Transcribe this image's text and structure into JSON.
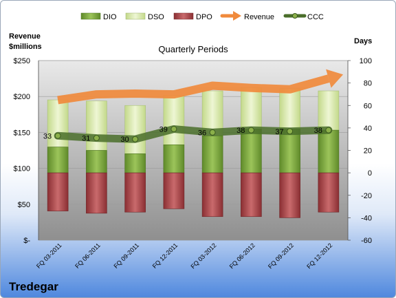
{
  "company": "Tredegar",
  "chart_data": {
    "type": "bar",
    "title": "Quarterly Periods",
    "left_axis": {
      "title_line1": "Revenue",
      "title_line2": "$millions",
      "ylim": [
        0,
        250
      ],
      "ticks": [
        0,
        50,
        100,
        150,
        200,
        250
      ],
      "tick_labels": [
        "$-",
        "$50",
        "$100",
        "$150",
        "$200",
        "$250"
      ]
    },
    "right_axis": {
      "title": "Days",
      "ylim": [
        -60,
        100
      ],
      "ticks": [
        -60,
        -40,
        -20,
        0,
        20,
        40,
        60,
        80,
        100
      ],
      "tick_labels": [
        "-60",
        "-40",
        "-20",
        "0",
        "20",
        "40",
        "60",
        "80",
        "100"
      ]
    },
    "categories": [
      "FQ 03-2011",
      "FQ 06-2011",
      "FQ 09-2011",
      "FQ 12-2011",
      "FQ 03-2012",
      "FQ 06-2012",
      "FQ 09-2012",
      "FQ 12-2012"
    ],
    "series": [
      {
        "name": "DIO",
        "color": "#7aa33a",
        "values": [
          23,
          20,
          17,
          25,
          33,
          39,
          39,
          38
        ]
      },
      {
        "name": "DSO",
        "color": "#d6e6a8",
        "values": [
          42,
          44,
          43,
          44,
          40,
          37,
          36,
          35
        ]
      },
      {
        "name": "DPO",
        "color": "#b0474a",
        "values": [
          -34,
          -36,
          -35,
          -32,
          -39,
          -39,
          -40,
          -35
        ]
      },
      {
        "name": "Revenue",
        "color": "#f08a3c",
        "values": [
          195,
          203,
          204,
          203,
          215,
          212,
          210,
          225
        ]
      },
      {
        "name": "CCC",
        "color": "#4a6e2a",
        "values": [
          33,
          31,
          30,
          39,
          36,
          38,
          37,
          38
        ],
        "labels": [
          "33",
          "31",
          "30",
          "39",
          "36",
          "38",
          "37",
          "38"
        ]
      }
    ],
    "grid": true,
    "legend_position": "top"
  }
}
